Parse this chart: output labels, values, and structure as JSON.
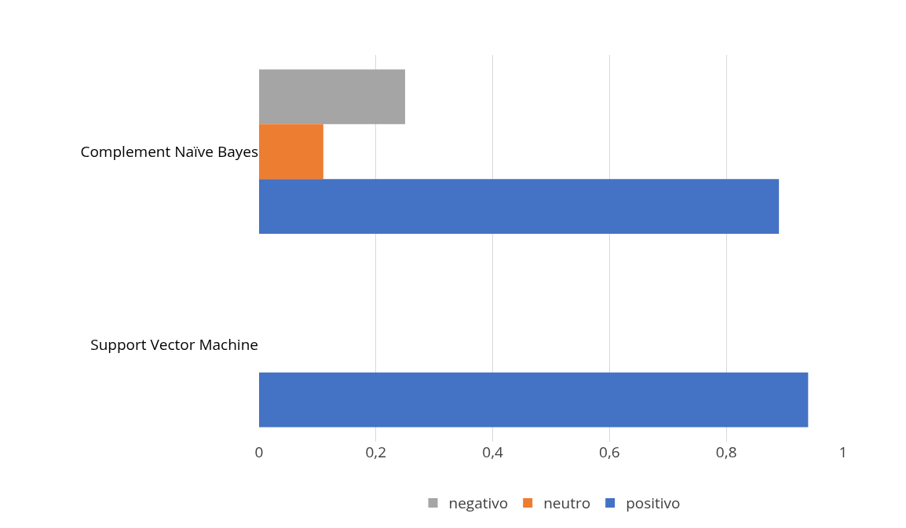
{
  "chart_data": {
    "type": "bar",
    "orientation": "horizontal",
    "categories": [
      "Complement Naïve Bayes",
      "Support Vector Machine"
    ],
    "series": [
      {
        "name": "negativo",
        "color": "#a5a5a5",
        "values": [
          0.25,
          0
        ]
      },
      {
        "name": "neutro",
        "color": "#ed7d31",
        "values": [
          0.11,
          0
        ]
      },
      {
        "name": "positivo",
        "color": "#4472c4",
        "values": [
          0.89,
          0.94
        ]
      }
    ],
    "xlim": [
      0,
      1
    ],
    "xticks": [
      0,
      {
        "value": 0.2,
        "label": "0,2"
      },
      {
        "value": 0.4,
        "label": "0,4"
      },
      {
        "value": 0.6,
        "label": "0,6"
      },
      {
        "value": 0.8,
        "label": "0,8"
      },
      1
    ],
    "grid": "x",
    "legend": "bottom"
  }
}
